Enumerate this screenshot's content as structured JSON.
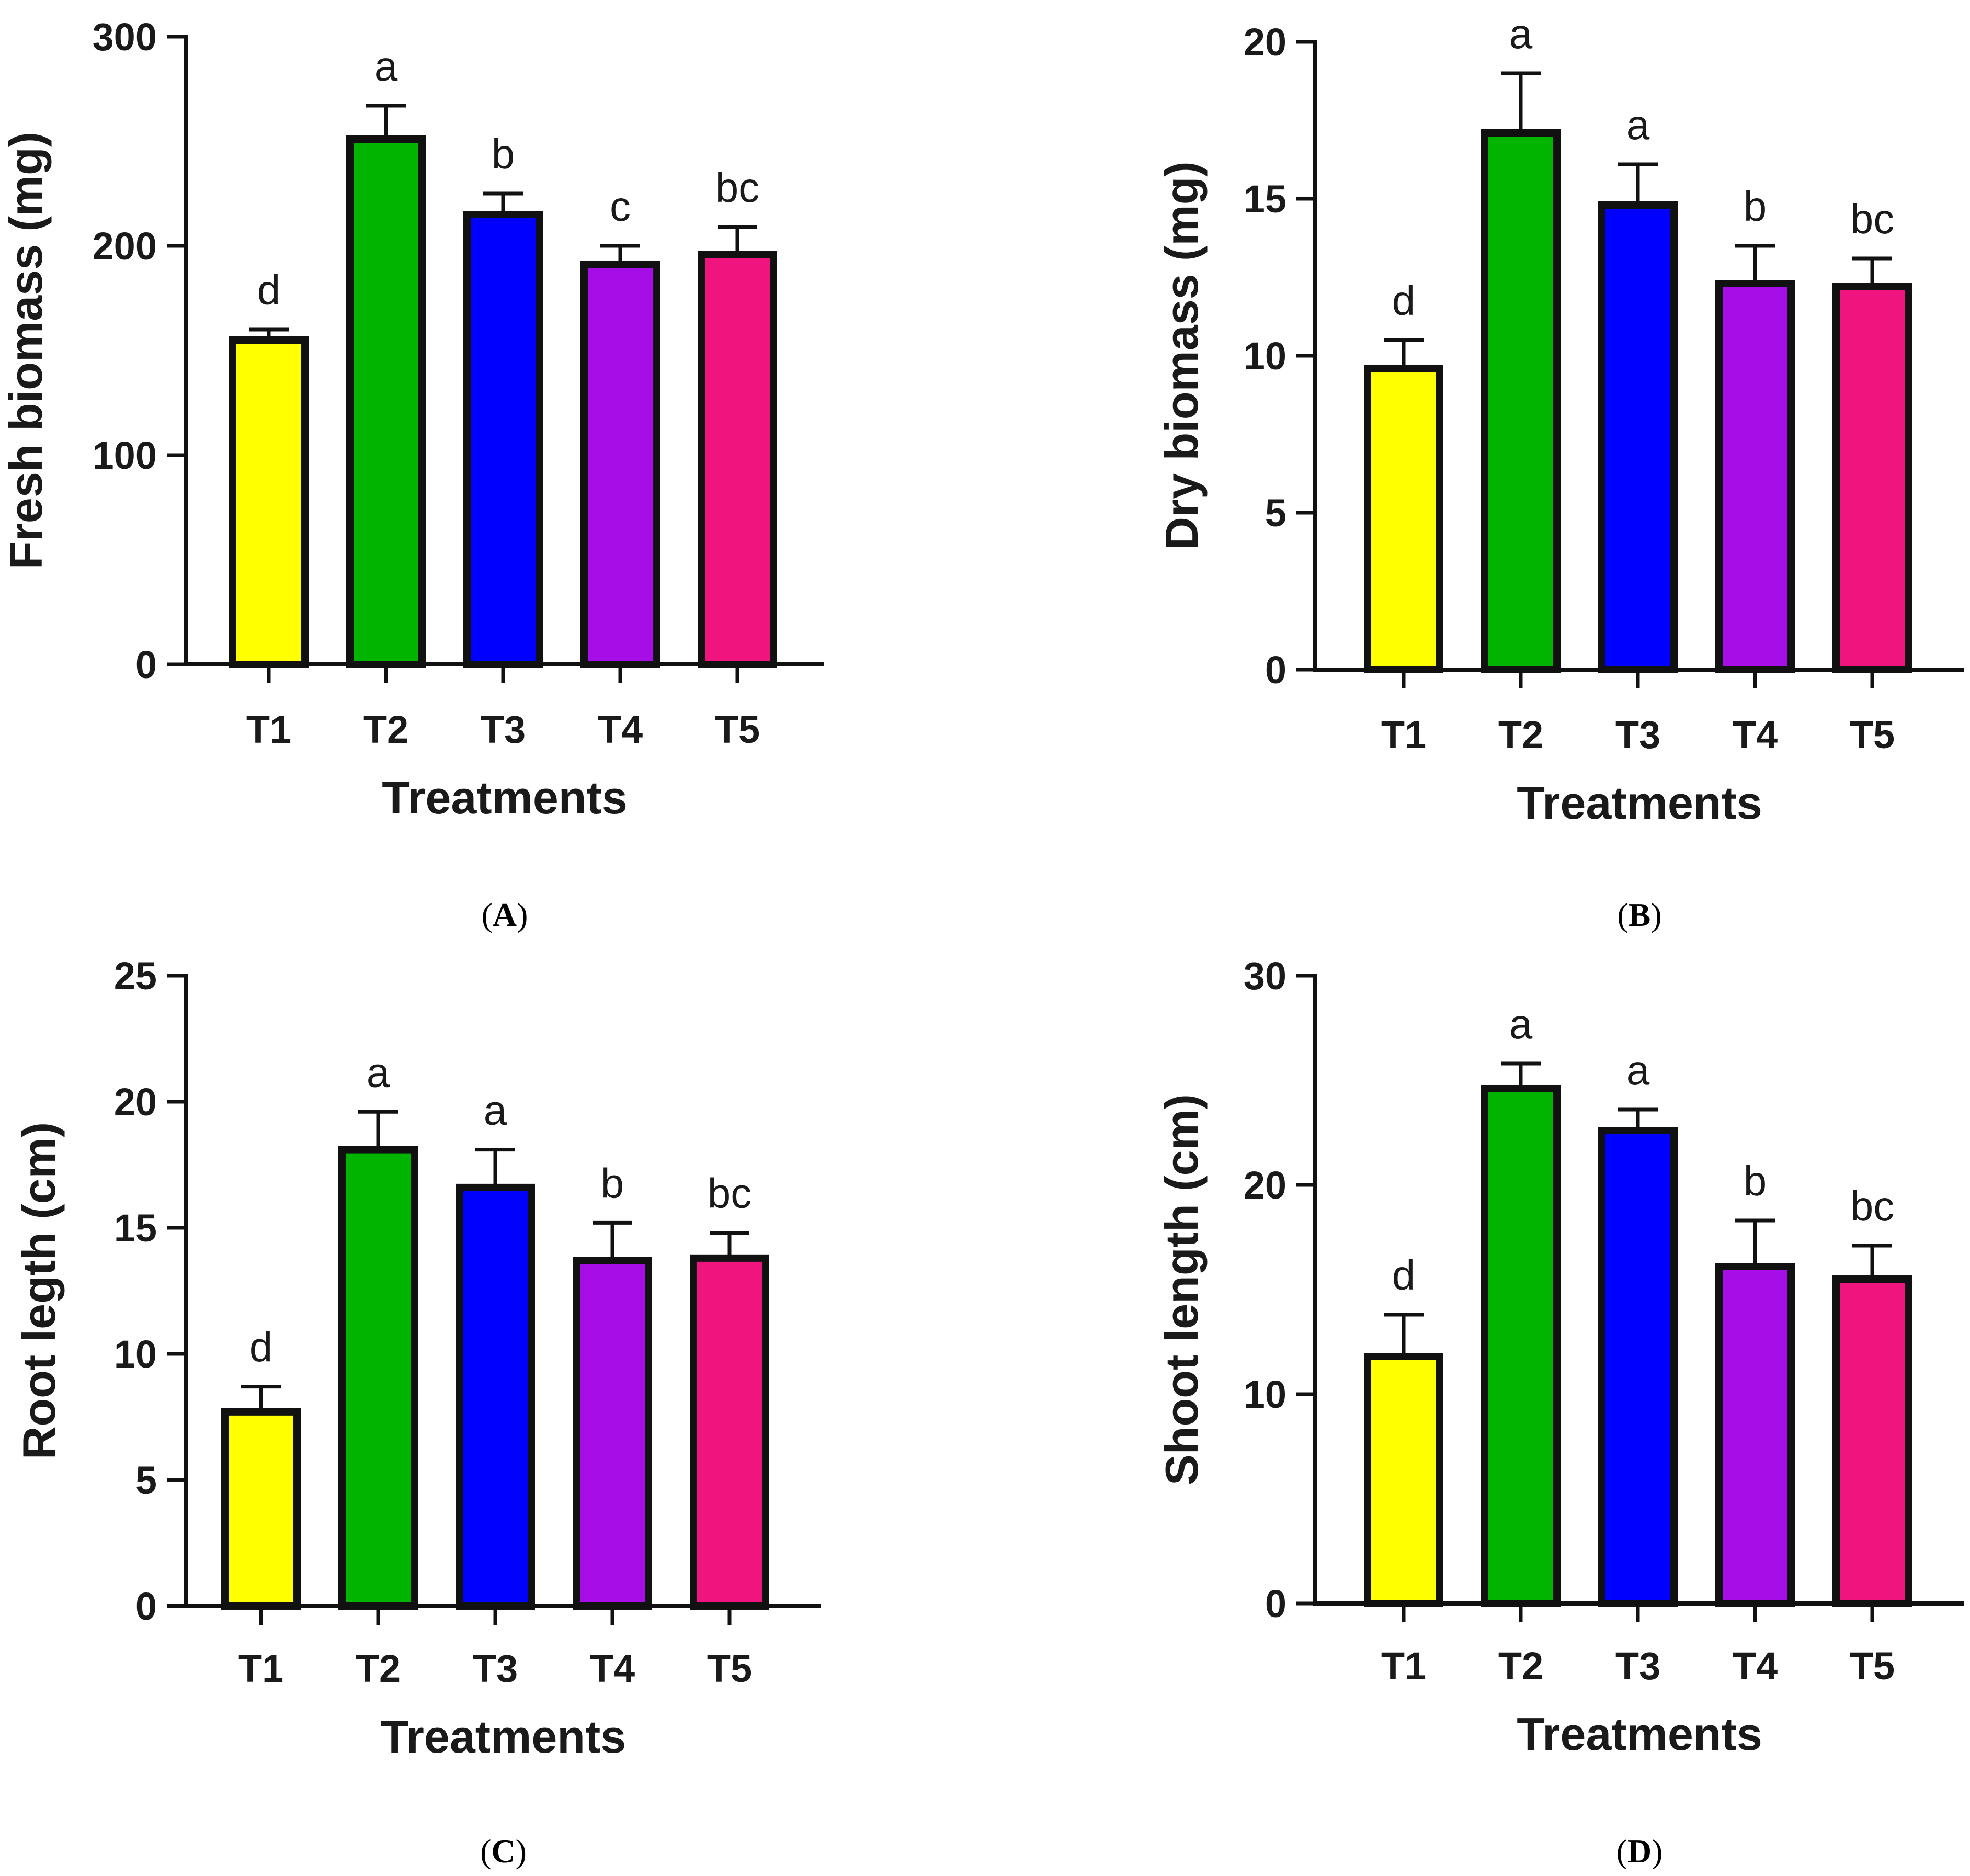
{
  "chart_data": [
    {
      "type": "bar",
      "panel": "A",
      "caption_letter": "A",
      "categories": [
        "T1",
        "T2",
        "T3",
        "T4",
        "T5"
      ],
      "values": [
        155,
        251,
        215,
        191,
        196
      ],
      "errors": [
        5,
        16,
        10,
        9,
        13
      ],
      "significance": [
        "d",
        "a",
        "b",
        "c",
        "bc"
      ],
      "colors": [
        "#ffff00",
        "#00b400",
        "#0000ff",
        "#a50ee6",
        "#f0147e"
      ],
      "ylabel": "Fresh biomass (mg)",
      "xlabel": "Treatments",
      "ylim": [
        0,
        300
      ],
      "yticks": [
        0,
        100,
        200,
        300
      ],
      "ytick_labels": [
        "0",
        "100",
        "200",
        "300"
      ]
    },
    {
      "type": "bar",
      "panel": "B",
      "caption_letter": "B",
      "categories": [
        "T1",
        "T2",
        "T3",
        "T4",
        "T5"
      ],
      "values": [
        9.6,
        17.1,
        14.8,
        12.3,
        12.2
      ],
      "errors": [
        0.9,
        1.9,
        1.3,
        1.2,
        0.9
      ],
      "significance": [
        "d",
        "a",
        "a",
        "b",
        "bc"
      ],
      "colors": [
        "#ffff00",
        "#00b400",
        "#0000ff",
        "#a50ee6",
        "#f0147e"
      ],
      "ylabel": "Dry biomass (mg)",
      "xlabel": "Treatments",
      "ylim": [
        0,
        20
      ],
      "yticks": [
        0,
        5,
        10,
        15,
        20
      ],
      "ytick_labels": [
        "0",
        "5",
        "10",
        "15",
        "20"
      ]
    },
    {
      "type": "bar",
      "panel": "C",
      "caption_letter": "C",
      "categories": [
        "T1",
        "T2",
        "T3",
        "T4",
        "T5"
      ],
      "values": [
        7.7,
        18.1,
        16.6,
        13.7,
        13.8
      ],
      "errors": [
        1.0,
        1.5,
        1.5,
        1.5,
        1.0
      ],
      "significance": [
        "d",
        "a",
        "a",
        "b",
        "bc"
      ],
      "colors": [
        "#ffff00",
        "#00b400",
        "#0000ff",
        "#a50ee6",
        "#f0147e"
      ],
      "ylabel": "Root legth (cm)",
      "xlabel": "Treatments",
      "ylim": [
        0,
        25
      ],
      "yticks": [
        0,
        5,
        10,
        15,
        20,
        25
      ],
      "ytick_labels": [
        "0",
        "5",
        "10",
        "15",
        "20",
        "25"
      ]
    },
    {
      "type": "bar",
      "panel": "D",
      "caption_letter": "D",
      "categories": [
        "T1",
        "T2",
        "T3",
        "T4",
        "T5"
      ],
      "values": [
        11.8,
        24.6,
        22.6,
        16.1,
        15.5
      ],
      "errors": [
        2.0,
        1.2,
        1.0,
        2.2,
        1.6
      ],
      "significance": [
        "d",
        "a",
        "a",
        "b",
        "bc"
      ],
      "colors": [
        "#ffff00",
        "#00b400",
        "#0000ff",
        "#a50ee6",
        "#f0147e"
      ],
      "ylabel": "Shoot length (cm)",
      "xlabel": "Treatments",
      "ylim": [
        0,
        30
      ],
      "yticks": [
        0,
        10,
        20,
        30
      ],
      "ytick_labels": [
        "0",
        "10",
        "20",
        "30"
      ]
    }
  ]
}
